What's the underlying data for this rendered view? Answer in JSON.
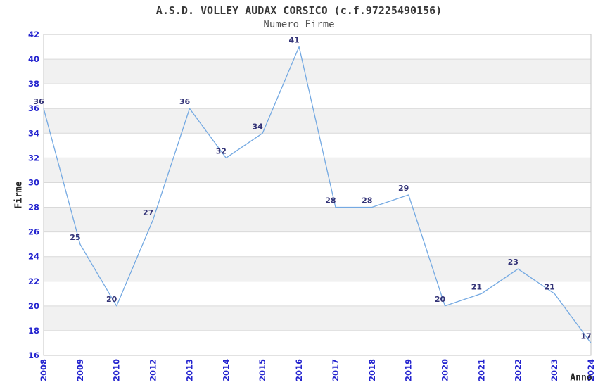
{
  "chart_data": {
    "type": "line",
    "title": "A.S.D. VOLLEY AUDAX CORSICO (c.f.97225490156)",
    "subtitle": "Numero Firme",
    "xlabel": "Anno",
    "ylabel": "Firme",
    "categories": [
      "2008",
      "2009",
      "2010",
      "2012",
      "2013",
      "2014",
      "2015",
      "2016",
      "2017",
      "2018",
      "2019",
      "2020",
      "2021",
      "2022",
      "2023",
      "2024"
    ],
    "values": [
      36,
      25,
      20,
      27,
      36,
      32,
      34,
      41,
      28,
      28,
      29,
      20,
      21,
      23,
      21,
      17
    ],
    "data_labels": [
      "36",
      "25",
      "20",
      "27",
      "36",
      "32",
      "34",
      "41",
      "28",
      "28",
      "29",
      "20",
      "21",
      "23",
      "21",
      "17"
    ],
    "ylim": [
      16,
      42
    ],
    "yticks": [
      42,
      40,
      38,
      36,
      34,
      32,
      30,
      28,
      26,
      24,
      22,
      20,
      18,
      16
    ],
    "grid": "horizontal alternating bands, gray stripes between 40-38, 36-34, 32-30, 28-26, 24-22, 20-18",
    "legend": "none",
    "colors": {
      "line": "#74a9e2",
      "tick_label": "#2424cf",
      "data_label": "#333377",
      "band": "#f1f1f1",
      "gridline": "#d9d9d9",
      "plot_border": "#c6c6c6",
      "title": "#383838",
      "subtitle": "#555555",
      "axis_label": "#262626",
      "background": "#ffffff"
    }
  }
}
